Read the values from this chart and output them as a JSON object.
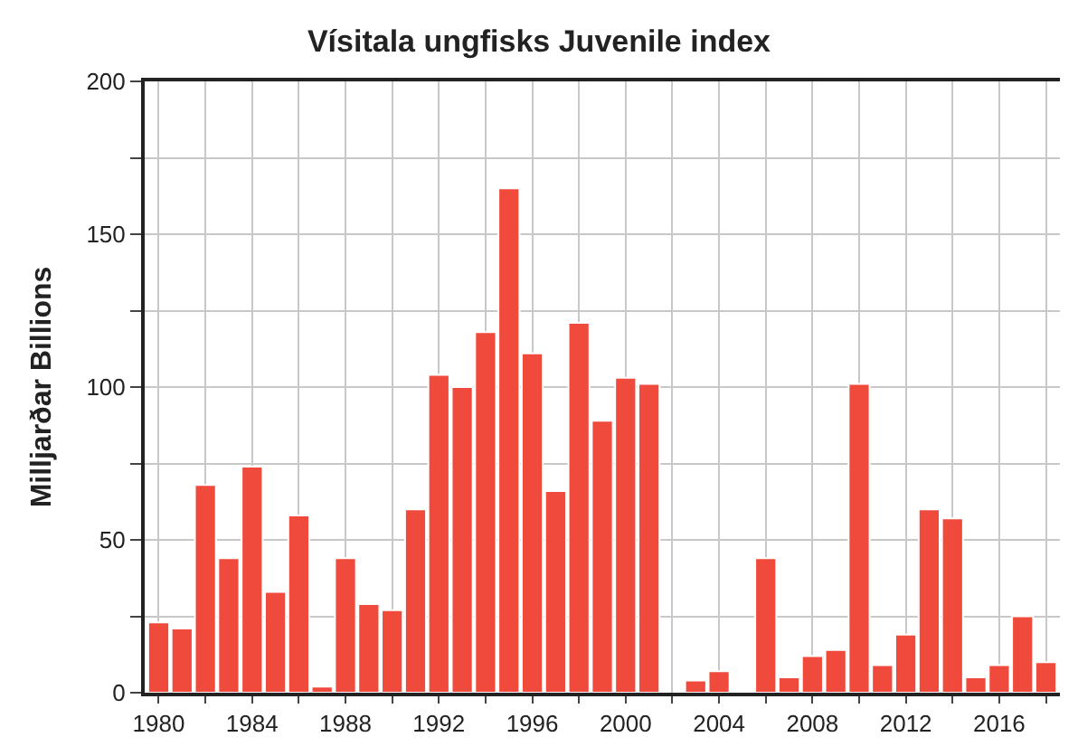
{
  "chart_data": {
    "type": "bar",
    "title": "Vísitala ungfisks Juvenile index",
    "ylabel": "Milljarðar Billions",
    "x": [
      1980,
      1981,
      1982,
      1983,
      1984,
      1985,
      1986,
      1987,
      1988,
      1989,
      1990,
      1991,
      1992,
      1993,
      1994,
      1995,
      1996,
      1997,
      1998,
      1999,
      2000,
      2001,
      2002,
      2003,
      2004,
      2005,
      2006,
      2007,
      2008,
      2009,
      2010,
      2011,
      2012,
      2013,
      2014,
      2015,
      2016,
      2017,
      2018
    ],
    "values": [
      23,
      21,
      68,
      44,
      74,
      33,
      58,
      2,
      44,
      29,
      27,
      60,
      104,
      100,
      118,
      165,
      111,
      66,
      121,
      89,
      103,
      101,
      null,
      4,
      7,
      null,
      44,
      5,
      12,
      14,
      101,
      9,
      19,
      60,
      57,
      5,
      9,
      25,
      10
    ],
    "color": "#f04a3c",
    "xlim": [
      1979.4,
      2018.6
    ],
    "xticks": [
      1980,
      {
        "value": 1982,
        "label": null
      },
      1984,
      {
        "value": 1986,
        "label": null
      },
      1988,
      {
        "value": 1990,
        "label": null
      },
      1992,
      {
        "value": 1994,
        "label": null
      },
      1996,
      {
        "value": 1998,
        "label": null
      },
      2000,
      {
        "value": 2002,
        "label": null
      },
      2004,
      {
        "value": 2006,
        "label": null
      },
      2008,
      {
        "value": 2010,
        "label": null
      },
      2012,
      {
        "value": 2014,
        "label": null
      },
      2016,
      {
        "value": 2018,
        "label": null
      }
    ],
    "ylim": [
      0,
      200
    ],
    "yticks": [
      0,
      {
        "value": 25,
        "label": null
      },
      50,
      {
        "value": 75,
        "label": null
      },
      100,
      {
        "value": 125,
        "label": null
      },
      150,
      {
        "value": 175,
        "label": null
      },
      200
    ],
    "grid": true
  }
}
